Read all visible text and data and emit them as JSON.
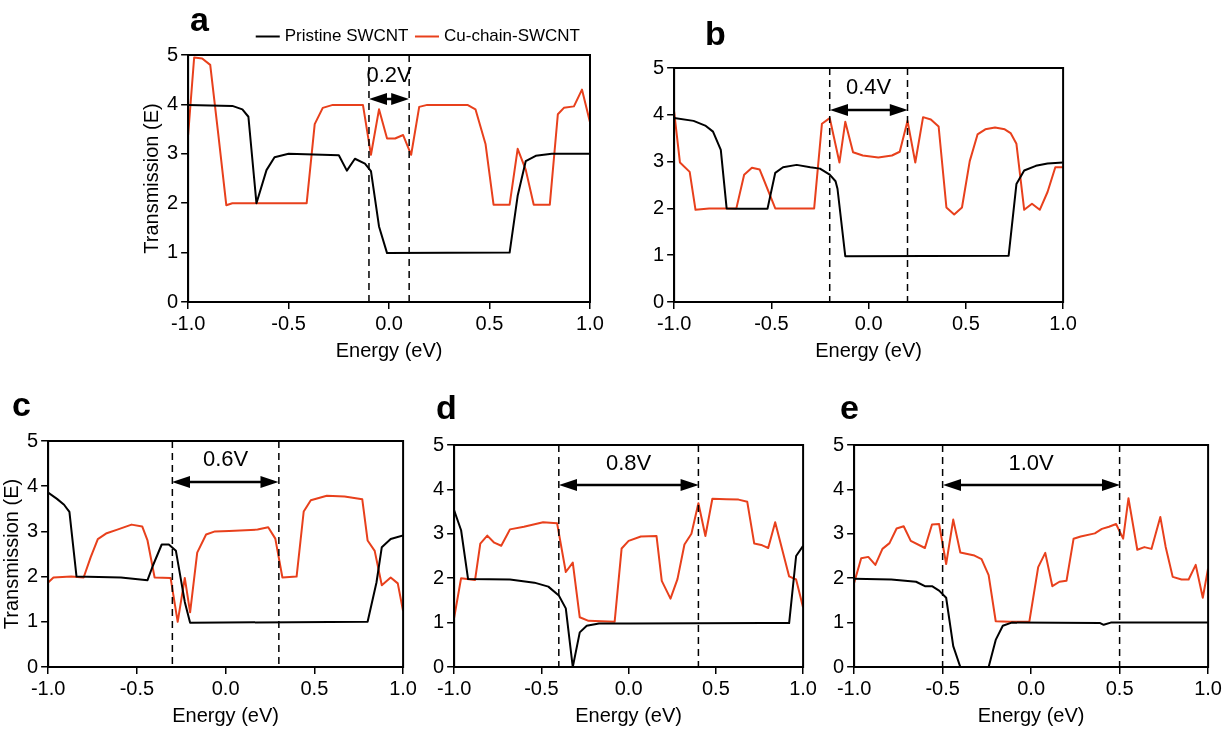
{
  "chart_data": [
    {
      "type": "line",
      "title": "a",
      "xlabel": "Energy (eV)",
      "ylabel": "Transmission (E)",
      "xlim": [
        -1,
        1
      ],
      "xticks": [
        {
          "value": -1,
          "label": "-1.0"
        },
        {
          "value": -0.5,
          "label": "-0.5"
        },
        {
          "value": 0,
          "label": "0.0"
        },
        {
          "value": 0.5,
          "label": "0.5"
        },
        {
          "value": 1,
          "label": "1.0"
        }
      ],
      "ylim": [
        0,
        5
      ],
      "yticks": [
        0,
        1,
        2,
        3,
        4,
        5
      ],
      "grid": false,
      "legend": "top right",
      "marker": "none",
      "line_style": "solid",
      "ref_lines": [
        {
          "axis": "x",
          "value": -0.1,
          "color": "#000000",
          "line_style": "dashed"
        },
        {
          "axis": "x",
          "value": 0.1,
          "color": "#000000",
          "line_style": "dashed"
        }
      ],
      "annotations": [
        "0.2V"
      ],
      "series": [
        {
          "name": "Pristine SWCNT",
          "color": "#000000",
          "x": [
            -1,
            -0.78,
            -0.73,
            -0.7,
            -0.66,
            -0.61,
            -0.57,
            -0.5,
            -0.25,
            -0.21,
            -0.17,
            -0.12,
            -0.09,
            -0.05,
            -0.01,
            0.6,
            0.64,
            0.68,
            0.73,
            0.81,
            1
          ],
          "values": [
            3.99,
            3.97,
            3.9,
            3.75,
            2.0,
            2.67,
            2.93,
            3.0,
            2.97,
            2.66,
            2.9,
            2.8,
            2.65,
            1.53,
            0.99,
            1.0,
            2.15,
            2.85,
            2.96,
            3.0,
            3.0
          ]
        },
        {
          "name": "Cu-chain-SWCNT",
          "color": "#e8401c",
          "x": [
            -1,
            -0.97,
            -0.93,
            -0.89,
            -0.85,
            -0.81,
            -0.78,
            -0.41,
            -0.37,
            -0.33,
            -0.28,
            -0.13,
            -0.09,
            -0.05,
            -0.01,
            0.03,
            0.07,
            0.11,
            0.15,
            0.19,
            0.39,
            0.43,
            0.48,
            0.52,
            0.6,
            0.64,
            0.68,
            0.72,
            0.8,
            0.84,
            0.87,
            0.92,
            0.96,
            1
          ],
          "values": [
            3.38,
            4.95,
            4.93,
            4.8,
            3.4,
            1.96,
            2.0,
            2.0,
            3.6,
            3.93,
            3.99,
            3.99,
            2.98,
            3.9,
            3.31,
            3.31,
            3.38,
            2.98,
            3.95,
            3.99,
            3.99,
            3.9,
            3.2,
            1.97,
            1.97,
            3.1,
            2.68,
            1.97,
            1.97,
            3.8,
            3.93,
            3.96,
            4.3,
            3.64
          ]
        }
      ]
    },
    {
      "type": "line",
      "title": "b",
      "xlabel": "Energy (eV)",
      "xlim": [
        -1,
        1
      ],
      "xticks": [
        {
          "value": -1,
          "label": "-1.0"
        },
        {
          "value": -0.5,
          "label": "-0.5"
        },
        {
          "value": 0,
          "label": "0.0"
        },
        {
          "value": 0.5,
          "label": "0.5"
        },
        {
          "value": 1,
          "label": "1.0"
        }
      ],
      "ylim": [
        0,
        5
      ],
      "yticks": [
        0,
        1,
        2,
        3,
        4,
        5
      ],
      "grid": false,
      "marker": "none",
      "line_style": "solid",
      "ref_lines": [
        {
          "axis": "x",
          "value": -0.2,
          "color": "#000000",
          "line_style": "dashed"
        },
        {
          "axis": "x",
          "value": 0.2,
          "color": "#000000",
          "line_style": "dashed"
        }
      ],
      "annotations": [
        "0.4V"
      ],
      "series": [
        {
          "color": "#000000",
          "x": [
            -1,
            -0.9,
            -0.84,
            -0.8,
            -0.76,
            -0.73,
            -0.66,
            -0.52,
            -0.48,
            -0.44,
            -0.37,
            -0.3,
            -0.25,
            -0.2,
            -0.17,
            -0.16,
            -0.12,
            0.72,
            0.76,
            0.8,
            0.86,
            0.92,
            1
          ],
          "values": [
            3.93,
            3.87,
            3.77,
            3.64,
            3.25,
            2.0,
            1.99,
            1.99,
            2.76,
            2.88,
            2.93,
            2.88,
            2.85,
            2.72,
            2.58,
            2.42,
            0.98,
            0.99,
            2.52,
            2.81,
            2.91,
            2.96,
            2.98
          ]
        },
        {
          "color": "#e8401c",
          "x": [
            -1,
            -0.97,
            -0.92,
            -0.89,
            -0.82,
            -0.68,
            -0.64,
            -0.6,
            -0.56,
            -0.48,
            -0.28,
            -0.24,
            -0.2,
            -0.15,
            -0.12,
            -0.08,
            -0.03,
            0.05,
            0.12,
            0.16,
            0.2,
            0.24,
            0.28,
            0.32,
            0.36,
            0.4,
            0.44,
            0.48,
            0.52,
            0.56,
            0.6,
            0.65,
            0.7,
            0.73,
            0.76,
            0.8,
            0.84,
            0.88,
            0.92,
            0.96,
            1
          ],
          "values": [
            4.07,
            2.98,
            2.78,
            1.97,
            2.0,
            2.0,
            2.72,
            2.87,
            2.83,
            2.0,
            2.0,
            3.81,
            3.93,
            2.98,
            3.85,
            3.2,
            3.13,
            3.09,
            3.13,
            3.21,
            3.87,
            2.98,
            3.95,
            3.9,
            3.75,
            2.02,
            1.87,
            2.02,
            3.01,
            3.58,
            3.69,
            3.73,
            3.69,
            3.61,
            3.38,
            1.97,
            2.1,
            1.97,
            2.35,
            2.88,
            2.88
          ]
        }
      ]
    },
    {
      "type": "line",
      "title": "c",
      "xlabel": "Energy (eV)",
      "ylabel": "Transmission (E)",
      "xlim": [
        -1,
        1
      ],
      "xticks": [
        {
          "value": -1,
          "label": "-1.0"
        },
        {
          "value": -0.5,
          "label": "-0.5"
        },
        {
          "value": 0,
          "label": "0.0"
        },
        {
          "value": 0.5,
          "label": "0.5"
        },
        {
          "value": 1,
          "label": "1.0"
        }
      ],
      "ylim": [
        0,
        5
      ],
      "yticks": [
        0,
        1,
        2,
        3,
        4,
        5
      ],
      "grid": false,
      "marker": "none",
      "line_style": "solid",
      "ref_lines": [
        {
          "axis": "x",
          "value": -0.3,
          "color": "#000000",
          "line_style": "dashed"
        },
        {
          "axis": "x",
          "value": 0.3,
          "color": "#000000",
          "line_style": "dashed"
        }
      ],
      "annotations": [
        "0.6V"
      ],
      "series": [
        {
          "color": "#000000",
          "x": [
            -1,
            -0.95,
            -0.91,
            -0.88,
            -0.84,
            -0.59,
            -0.44,
            -0.41,
            -0.36,
            -0.32,
            -0.28,
            -0.23,
            -0.2,
            0.8,
            0.85,
            0.88,
            0.93,
            1
          ],
          "values": [
            3.86,
            3.72,
            3.59,
            3.43,
            2.0,
            1.98,
            1.92,
            2.24,
            2.71,
            2.71,
            2.57,
            1.44,
            0.98,
            1.0,
            1.87,
            2.65,
            2.83,
            2.91
          ]
        },
        {
          "color": "#e8401c",
          "x": [
            -1,
            -0.97,
            -0.87,
            -0.8,
            -0.76,
            -0.72,
            -0.67,
            -0.61,
            -0.53,
            -0.47,
            -0.44,
            -0.4,
            -0.31,
            -0.27,
            -0.23,
            -0.2,
            -0.16,
            -0.11,
            -0.06,
            0.02,
            0.18,
            0.24,
            0.28,
            0.32,
            0.4,
            0.44,
            0.48,
            0.57,
            0.67,
            0.77,
            0.8,
            0.84,
            0.88,
            0.93,
            0.97,
            1
          ],
          "values": [
            1.87,
            1.98,
            2.0,
            1.98,
            2.43,
            2.83,
            2.96,
            3.04,
            3.15,
            3.11,
            2.8,
            1.98,
            1.97,
            1.0,
            1.97,
            1.21,
            2.53,
            2.93,
            3.0,
            3.01,
            3.04,
            3.09,
            2.84,
            1.98,
            2.0,
            3.44,
            3.69,
            3.79,
            3.77,
            3.71,
            2.8,
            2.57,
            1.81,
            1.98,
            1.85,
            1.24
          ]
        }
      ]
    },
    {
      "type": "line",
      "title": "d",
      "xlabel": "Energy (eV)",
      "xlim": [
        -1,
        1
      ],
      "xticks": [
        {
          "value": -1,
          "label": "-1.0"
        },
        {
          "value": -0.5,
          "label": "-0.5"
        },
        {
          "value": 0,
          "label": "0.0"
        },
        {
          "value": 0.5,
          "label": "0.5"
        },
        {
          "value": 1,
          "label": "1.0"
        }
      ],
      "ylim": [
        0,
        5
      ],
      "yticks": [
        0,
        1,
        2,
        3,
        4,
        5
      ],
      "grid": false,
      "marker": "none",
      "line_style": "solid",
      "ref_lines": [
        {
          "axis": "x",
          "value": -0.4,
          "color": "#000000",
          "line_style": "dashed"
        },
        {
          "axis": "x",
          "value": 0.4,
          "color": "#000000",
          "line_style": "dashed"
        }
      ],
      "annotations": [
        "0.8V"
      ],
      "series": [
        {
          "color": "#000000",
          "x": [
            -1,
            -0.96,
            -0.92,
            -0.68,
            -0.54,
            -0.46,
            -0.4,
            -0.36,
            -0.32,
            -0.28,
            -0.24,
            -0.17,
            0.01,
            0.92,
            0.96,
            1
          ],
          "values": [
            3.53,
            3.08,
            1.98,
            1.97,
            1.9,
            1.81,
            1.61,
            1.32,
            0,
            0.78,
            0.93,
            0.98,
            0.98,
            0.99,
            2.5,
            2.73
          ]
        },
        {
          "color": "#e8401c",
          "x": [
            -1,
            -0.96,
            -0.88,
            -0.85,
            -0.81,
            -0.77,
            -0.73,
            -0.68,
            -0.6,
            -0.49,
            -0.41,
            -0.36,
            -0.32,
            -0.28,
            -0.23,
            -0.08,
            -0.04,
            0.0,
            0.07,
            0.16,
            0.19,
            0.24,
            0.28,
            0.32,
            0.36,
            0.4,
            0.44,
            0.48,
            0.56,
            0.63,
            0.68,
            0.72,
            0.76,
            0.8,
            0.84,
            0.92,
            0.96,
            1
          ],
          "values": [
            1.11,
            2.0,
            1.96,
            2.78,
            2.96,
            2.8,
            2.73,
            3.1,
            3.16,
            3.26,
            3.24,
            2.14,
            2.35,
            1.12,
            1.04,
            1.02,
            2.67,
            2.84,
            2.94,
            2.95,
            1.94,
            1.54,
            1.98,
            2.76,
            3.0,
            3.69,
            2.95,
            3.79,
            3.78,
            3.77,
            3.72,
            2.78,
            2.75,
            2.68,
            3.26,
            2.04,
            1.97,
            1.34
          ]
        }
      ]
    },
    {
      "type": "line",
      "title": "e",
      "xlabel": "Energy (eV)",
      "xlim": [
        -1,
        1
      ],
      "xticks": [
        {
          "value": -1,
          "label": "-1.0"
        },
        {
          "value": -0.5,
          "label": "-0.5"
        },
        {
          "value": 0,
          "label": "0.0"
        },
        {
          "value": 0.5,
          "label": "0.5"
        },
        {
          "value": 1,
          "label": "1.0"
        }
      ],
      "ylim": [
        0,
        5
      ],
      "yticks": [
        0,
        1,
        2,
        3,
        4,
        5
      ],
      "grid": false,
      "marker": "none",
      "line_style": "solid",
      "ref_lines": [
        {
          "axis": "x",
          "value": -0.5,
          "color": "#000000",
          "line_style": "dashed"
        },
        {
          "axis": "x",
          "value": 0.5,
          "color": "#000000",
          "line_style": "dashed"
        }
      ],
      "annotations": [
        "1.0V"
      ],
      "series": [
        {
          "color": "#000000",
          "x": [
            -1,
            -0.79,
            -0.65,
            -0.6,
            -0.56,
            -0.52,
            -0.48,
            -0.44,
            -0.4,
            -0.24,
            -0.2,
            -0.16,
            -0.11,
            0.39,
            0.41,
            0.45,
            1
          ],
          "values": [
            1.99,
            1.97,
            1.92,
            1.82,
            1.82,
            1.72,
            1.56,
            0.47,
            0,
            0,
            0.61,
            0.93,
            1.0,
            0.99,
            0.95,
            1.0,
            1.0
          ]
        },
        {
          "color": "#e8401c",
          "x": [
            -1,
            -0.96,
            -0.92,
            -0.88,
            -0.84,
            -0.8,
            -0.76,
            -0.72,
            -0.68,
            -0.6,
            -0.56,
            -0.52,
            -0.48,
            -0.44,
            -0.4,
            -0.32,
            -0.28,
            -0.24,
            -0.2,
            -0.12,
            -0.01,
            0.04,
            0.08,
            0.12,
            0.16,
            0.2,
            0.24,
            0.28,
            0.36,
            0.4,
            0.44,
            0.48,
            0.52,
            0.55,
            0.6,
            0.64,
            0.68,
            0.73,
            0.76,
            0.8,
            0.85,
            0.89,
            0.93,
            0.97,
            1
          ],
          "values": [
            1.89,
            2.45,
            2.48,
            2.3,
            2.66,
            2.79,
            3.12,
            3.17,
            2.84,
            2.68,
            3.21,
            3.22,
            2.32,
            3.32,
            2.58,
            2.51,
            2.43,
            2.07,
            1.03,
            1.02,
            1.02,
            2.25,
            2.57,
            1.82,
            1.92,
            1.94,
            2.89,
            2.94,
            3.01,
            3.11,
            3.16,
            3.22,
            2.89,
            3.8,
            2.64,
            2.7,
            2.66,
            3.38,
            2.71,
            2.03,
            1.97,
            1.97,
            2.3,
            1.56,
            2.22
          ]
        }
      ]
    }
  ]
}
